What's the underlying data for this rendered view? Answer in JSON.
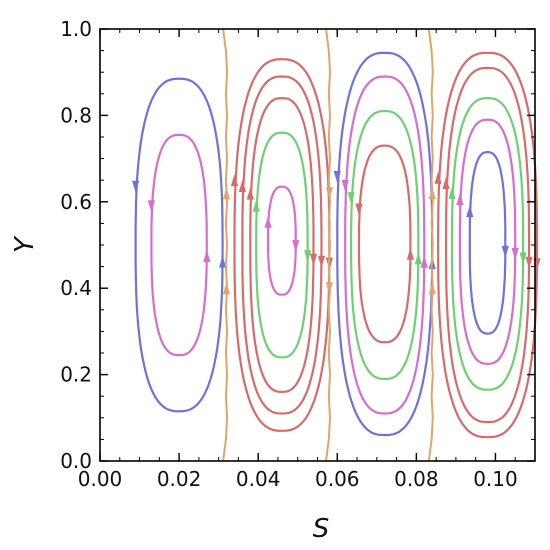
{
  "chart_data": {
    "type": "line",
    "subtype": "contour-streamlines",
    "title": "",
    "xlabel": "S",
    "ylabel": "Y",
    "xlim": [
      0.0,
      0.11
    ],
    "ylim": [
      0.0,
      1.0
    ],
    "x_ticks": [
      "0.00",
      "0.02",
      "0.04",
      "0.06",
      "0.08",
      "0.10"
    ],
    "y_ticks": [
      "0.0",
      "0.2",
      "0.4",
      "0.6",
      "0.8",
      "1.0"
    ],
    "grid": false,
    "legend": "none",
    "colors": {
      "blue": "#6f72dd",
      "magenta": "#d86ccf",
      "green": "#6fd073",
      "red": "#d86a6a",
      "orange": "#e0a56a",
      "frame": "#000000"
    },
    "cells": [
      {
        "center_x": 0.02,
        "rotation": "counter-clockwise",
        "loops": [
          {
            "color": "blue",
            "x_range": [
              0.009,
              0.031
            ],
            "y_range": [
              0.115,
              0.885
            ]
          },
          {
            "color": "magenta",
            "x_range": [
              0.013,
              0.027
            ],
            "y_range": [
              0.245,
              0.755
            ]
          }
        ]
      },
      {
        "center_x": 0.046,
        "rotation": "clockwise",
        "loops": [
          {
            "color": "red",
            "x_range": [
              0.034,
              0.058
            ],
            "y_range": [
              0.07,
              0.93
            ]
          },
          {
            "color": "red",
            "x_range": [
              0.036,
              0.056
            ],
            "y_range": [
              0.11,
              0.89
            ]
          },
          {
            "color": "red",
            "x_range": [
              0.038,
              0.054
            ],
            "y_range": [
              0.16,
              0.84
            ]
          },
          {
            "color": "green",
            "x_range": [
              0.0395,
              0.0525
            ],
            "y_range": [
              0.24,
              0.76
            ]
          },
          {
            "color": "magenta",
            "x_range": [
              0.0425,
              0.0495
            ],
            "y_range": [
              0.385,
              0.635
            ]
          }
        ]
      },
      {
        "center_x": 0.072,
        "rotation": "counter-clockwise",
        "loops": [
          {
            "color": "blue",
            "x_range": [
              0.06,
              0.084
            ],
            "y_range": [
              0.06,
              0.945
            ]
          },
          {
            "color": "magenta",
            "x_range": [
              0.062,
              0.082
            ],
            "y_range": [
              0.11,
              0.89
            ]
          },
          {
            "color": "green",
            "x_range": [
              0.0635,
              0.0805
            ],
            "y_range": [
              0.19,
              0.81
            ]
          },
          {
            "color": "red",
            "x_range": [
              0.0655,
              0.0785
            ],
            "y_range": [
              0.275,
              0.73
            ]
          }
        ]
      },
      {
        "center_x": 0.098,
        "rotation": "clockwise",
        "loops": [
          {
            "color": "red",
            "x_range": [
              0.0855,
              0.1105
            ],
            "y_range": [
              0.055,
              0.945
            ]
          },
          {
            "color": "red",
            "x_range": [
              0.0875,
              0.1085
            ],
            "y_range": [
              0.09,
              0.91
            ]
          },
          {
            "color": "green",
            "x_range": [
              0.089,
              0.107
            ],
            "y_range": [
              0.165,
              0.84
            ]
          },
          {
            "color": "magenta",
            "x_range": [
              0.091,
              0.105
            ],
            "y_range": [
              0.225,
              0.79
            ]
          },
          {
            "color": "blue",
            "x_range": [
              0.0935,
              0.1025
            ],
            "y_range": [
              0.295,
              0.715
            ]
          }
        ]
      }
    ],
    "separatrices": [
      {
        "color": "orange",
        "x_at_bottom": 0.032,
        "x_at_top": 0.032,
        "direction": "up"
      },
      {
        "color": "orange",
        "x_at_bottom": 0.058,
        "x_at_top": 0.058,
        "direction": "down"
      },
      {
        "color": "orange",
        "x_at_bottom": 0.084,
        "x_at_top": 0.084,
        "direction": "up"
      }
    ]
  }
}
